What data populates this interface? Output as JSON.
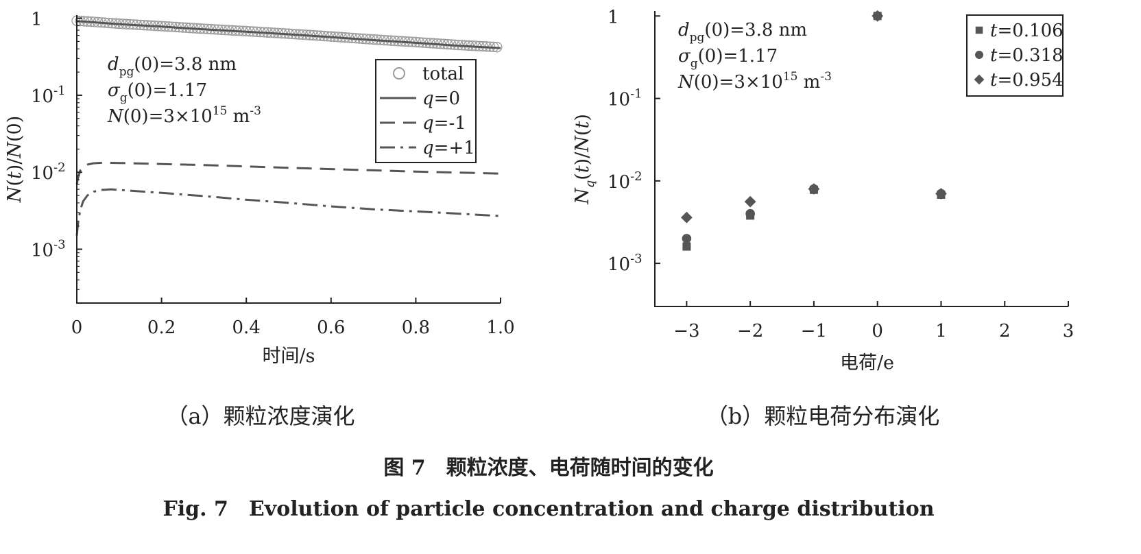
{
  "chart_data": [
    {
      "type": "line",
      "panel_caption": "（a）颗粒浓度演化",
      "xlabel": "时间/s",
      "ylabel": "N(t)/N(0)",
      "xlim": [
        0,
        1.0
      ],
      "ylim": [
        0.0002,
        1.1
      ],
      "yscale": "log",
      "xticks": [
        "0",
        "0.2",
        "0.4",
        "0.6",
        "0.8",
        "1.0"
      ],
      "yticks": [
        {
          "value": 1,
          "base": "1",
          "exp": ""
        },
        {
          "value": 0.1,
          "base": "10",
          "exp": "-1"
        },
        {
          "value": 0.01,
          "base": "10",
          "exp": "-2"
        },
        {
          "value": 0.001,
          "base": "10",
          "exp": "-3"
        }
      ],
      "annotations": {
        "line1": {
          "sym": "d",
          "sub": "pg",
          "rest": "(0)=3.8 nm"
        },
        "line2": {
          "sym": "σ",
          "sub": "g",
          "rest": "(0)=1.17"
        },
        "line3": {
          "sym": "N",
          "mid": "(0)=3×10",
          "sup": "15",
          "unit": " m",
          "unitsup": "-3"
        }
      },
      "legend_position": "top-right",
      "legend": [
        {
          "key": "total",
          "prefix": "",
          "text": "total",
          "style": "circles"
        },
        {
          "key": "q0",
          "prefix": "q",
          "text": "=0",
          "style": "solid"
        },
        {
          "key": "qm1",
          "prefix": "q",
          "text": "=-1",
          "style": "dashed"
        },
        {
          "key": "qp1",
          "prefix": "q",
          "text": "=+1",
          "style": "dashdot"
        }
      ],
      "series": [
        {
          "key": "total",
          "x": [
            0,
            0.1,
            0.2,
            0.3,
            0.4,
            0.5,
            0.6,
            0.7,
            0.8,
            0.9,
            1.0
          ],
          "y": [
            0.93,
            0.85,
            0.79,
            0.73,
            0.68,
            0.63,
            0.58,
            0.53,
            0.49,
            0.45,
            0.42
          ]
        },
        {
          "key": "q0",
          "x": [
            0,
            0.1,
            0.2,
            0.3,
            0.4,
            0.5,
            0.6,
            0.7,
            0.8,
            0.9,
            1.0
          ],
          "y": [
            0.92,
            0.84,
            0.78,
            0.72,
            0.67,
            0.62,
            0.57,
            0.52,
            0.48,
            0.44,
            0.41
          ]
        },
        {
          "key": "qm1",
          "x": [
            0,
            0.003,
            0.008,
            0.015,
            0.025,
            0.04,
            0.06,
            0.1,
            0.2,
            0.3,
            0.4,
            0.5,
            0.6,
            0.7,
            0.8,
            0.9,
            1.0
          ],
          "y": [
            0.007,
            0.0085,
            0.0105,
            0.0118,
            0.0126,
            0.0131,
            0.0133,
            0.0132,
            0.0128,
            0.0124,
            0.0119,
            0.0114,
            0.011,
            0.0106,
            0.0102,
            0.0099,
            0.0096
          ]
        },
        {
          "key": "qp1",
          "x": [
            0,
            0.003,
            0.008,
            0.015,
            0.025,
            0.04,
            0.06,
            0.08,
            0.1,
            0.2,
            0.3,
            0.4,
            0.5,
            0.6,
            0.7,
            0.8,
            0.9,
            1.0
          ],
          "y": [
            0.0015,
            0.0022,
            0.0032,
            0.0042,
            0.005,
            0.0056,
            0.0059,
            0.006,
            0.0059,
            0.0054,
            0.0049,
            0.0044,
            0.004,
            0.0036,
            0.0033,
            0.0031,
            0.0029,
            0.0027
          ]
        }
      ]
    },
    {
      "type": "scatter",
      "panel_caption": "（b）颗粒电荷分布演化",
      "xlabel": "电荷/e",
      "ylabel": "Nq(t)/N(t)",
      "xlim": [
        -3.5,
        3
      ],
      "ylim": [
        0.0003,
        1.15
      ],
      "yscale": "log",
      "xticks": [
        "−3",
        "−2",
        "−1",
        "0",
        "1",
        "2",
        "3"
      ],
      "yticks": [
        {
          "value": 1,
          "base": "1",
          "exp": ""
        },
        {
          "value": 0.1,
          "base": "10",
          "exp": "-1"
        },
        {
          "value": 0.01,
          "base": "10",
          "exp": "-2"
        },
        {
          "value": 0.001,
          "base": "10",
          "exp": "-3"
        }
      ],
      "annotations": {
        "line1": {
          "sym": "d",
          "sub": "pg",
          "rest": "(0)=3.8 nm"
        },
        "line2": {
          "sym": "σ",
          "sub": "g",
          "rest": "(0)=1.17"
        },
        "line3": {
          "sym": "N",
          "mid": "(0)=3×10",
          "sup": "15",
          "unit": " m",
          "unitsup": "-3"
        }
      },
      "legend_position": "top-right",
      "legend": [
        {
          "key": "t1",
          "prefix": "t",
          "text": "=0.106",
          "marker": "square"
        },
        {
          "key": "t2",
          "prefix": "t",
          "text": "=0.318",
          "marker": "circle"
        },
        {
          "key": "t3",
          "prefix": "t",
          "text": "=0.954",
          "marker": "diamond"
        }
      ],
      "series": [
        {
          "key": "t1",
          "marker": "square",
          "x": [
            -3,
            -2,
            -1,
            0,
            1
          ],
          "y": [
            0.0016,
            0.0038,
            0.0078,
            1.0,
            0.0068
          ]
        },
        {
          "key": "t2",
          "marker": "circle",
          "x": [
            -3,
            -2,
            -1,
            0,
            1
          ],
          "y": [
            0.002,
            0.004,
            0.008,
            1.0,
            0.007
          ]
        },
        {
          "key": "t3",
          "marker": "diamond",
          "x": [
            -3,
            -2,
            -1,
            0,
            1
          ],
          "y": [
            0.0036,
            0.0056,
            0.008,
            1.0,
            0.007
          ]
        }
      ]
    }
  ],
  "caption": {
    "cn": "图 7　颗粒浓度、电荷随时间的变化",
    "en": "Fig. 7　Evolution of particle concentration and charge distribution"
  },
  "colors": {
    "axis": "#222222",
    "series": "#555555",
    "circle": "#9a9a9a"
  }
}
